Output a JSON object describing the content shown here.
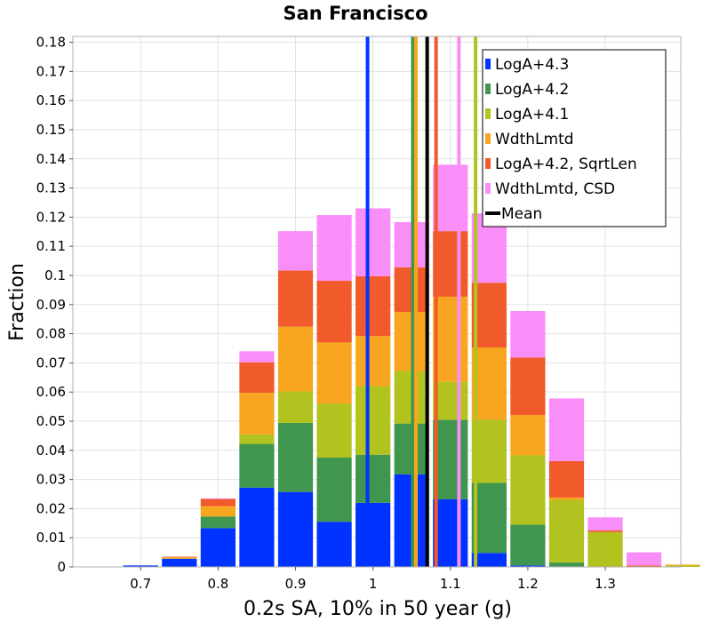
{
  "chart_data": {
    "type": "bar",
    "title": "San Francisco",
    "xlabel": "0.2s SA, 10% in 50 year (g)",
    "ylabel": "Fraction",
    "xlim": [
      0.6125,
      1.3975
    ],
    "ylim": [
      0,
      0.182
    ],
    "x_ticks": [
      "0.7",
      "0.8",
      "0.9",
      "1",
      "1.1",
      "1.2",
      "1.3"
    ],
    "y_ticks": [
      "0",
      "0.01",
      "0.02",
      "0.03",
      "0.04",
      "0.05",
      "0.06",
      "0.07",
      "0.08",
      "0.09",
      "0.1",
      "0.11",
      "0.12",
      "0.13",
      "0.14",
      "0.15",
      "0.16",
      "0.17",
      "0.18"
    ],
    "grid": true,
    "bar_width": 0.045,
    "bin_centers": [
      0.65,
      0.7,
      0.75,
      0.8,
      0.85,
      0.9,
      0.95,
      1.0,
      1.05,
      1.1,
      1.15,
      1.2,
      1.25,
      1.3,
      1.35,
      1.4
    ],
    "stacked": true,
    "legend_position": "top-right",
    "series": [
      {
        "name": "LogA+4.3",
        "color": "#0033ff",
        "values": [
          0,
          0.0005,
          0.0028,
          0.0133,
          0.0272,
          0.0257,
          0.0155,
          0.022,
          0.0318,
          0.0232,
          0.0048,
          0.0005,
          0,
          0,
          0,
          0
        ]
      },
      {
        "name": "LogA+4.2",
        "color": "#40964e",
        "values": [
          0,
          0,
          0,
          0.004,
          0.015,
          0.0237,
          0.022,
          0.0165,
          0.0174,
          0.0273,
          0.024,
          0.014,
          0.0015,
          0,
          0,
          0
        ]
      },
      {
        "name": "LogA+4.1",
        "color": "#b2c21e",
        "values": [
          0,
          0,
          0,
          0,
          0.0033,
          0.0108,
          0.0185,
          0.0235,
          0.018,
          0.013,
          0.0217,
          0.0238,
          0.0215,
          0.012,
          0,
          0.0005
        ]
      },
      {
        "name": "WdthLmtd",
        "color": "#f8a61f",
        "values": [
          0,
          0,
          0.0005,
          0.0035,
          0.0142,
          0.0222,
          0.021,
          0.0172,
          0.0203,
          0.0292,
          0.0248,
          0.0138,
          0.0008,
          0,
          0,
          0.0003
        ]
      },
      {
        "name": "LogA+4.2, SqrtLen",
        "color": "#f15a2a",
        "values": [
          0,
          0,
          0.0002,
          0.0025,
          0.0105,
          0.0193,
          0.0212,
          0.0205,
          0.0153,
          0.0225,
          0.0222,
          0.0197,
          0.0125,
          0.0005,
          0.0005,
          0
        ]
      },
      {
        "name": "WdthLmtd, CSD",
        "color": "#fa8ef8",
        "values": [
          0,
          0,
          0,
          0.0002,
          0.0038,
          0.0135,
          0.0225,
          0.0233,
          0.0155,
          0.0228,
          0.0238,
          0.016,
          0.0215,
          0.0045,
          0.0045,
          0
        ]
      }
    ],
    "mean_lines": [
      {
        "name": "LogA+4.3",
        "color": "#0033ff",
        "x": 0.993
      },
      {
        "name": "LogA+4.2",
        "color": "#40964e",
        "x": 1.0515
      },
      {
        "name": "LogA+4.1",
        "color": "#b2c21e",
        "x": 1.1325
      },
      {
        "name": "WdthLmtd",
        "color": "#f8a61f",
        "x": 1.0555
      },
      {
        "name": "LogA+4.2, SqrtLen",
        "color": "#f15a2a",
        "x": 1.0815
      },
      {
        "name": "WdthLmtd, CSD",
        "color": "#fa8ef8",
        "x": 1.111
      },
      {
        "name": "Mean",
        "color": "#000000",
        "x": 1.07
      }
    ],
    "legend": [
      {
        "label": "LogA+4.3",
        "color": "#0033ff"
      },
      {
        "label": "LogA+4.2",
        "color": "#40964e"
      },
      {
        "label": "LogA+4.1",
        "color": "#b2c21e"
      },
      {
        "label": "WdthLmtd",
        "color": "#f8a61f"
      },
      {
        "label": "LogA+4.2, SqrtLen",
        "color": "#f15a2a"
      },
      {
        "label": "WdthLmtd, CSD",
        "color": "#fa8ef8"
      },
      {
        "label": "Mean",
        "color": "#000000",
        "marker": "line"
      }
    ]
  }
}
